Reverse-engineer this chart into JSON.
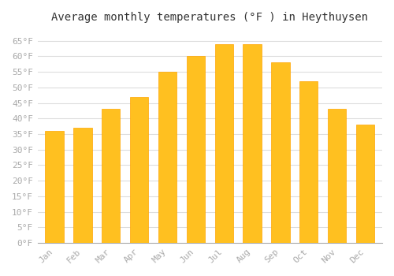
{
  "months": [
    "Jan",
    "Feb",
    "Mar",
    "Apr",
    "May",
    "Jun",
    "Jul",
    "Aug",
    "Sep",
    "Oct",
    "Nov",
    "Dec"
  ],
  "values": [
    36,
    37,
    43,
    47,
    55,
    60,
    64,
    64,
    58,
    52,
    43,
    38
  ],
  "bar_color_main": "#FFC020",
  "bar_color_edge": "#FFA500",
  "title": "Average monthly temperatures (°F ) in Heythuysen",
  "ylim": [
    0,
    68
  ],
  "yticks": [
    0,
    5,
    10,
    15,
    20,
    25,
    30,
    35,
    40,
    45,
    50,
    55,
    60,
    65
  ],
  "ytick_labels": [
    "0°F",
    "5°F",
    "10°F",
    "15°F",
    "20°F",
    "25°F",
    "30°F",
    "35°F",
    "40°F",
    "45°F",
    "50°F",
    "55°F",
    "60°F",
    "65°F"
  ],
  "background_color": "#ffffff",
  "grid_color": "#dddddd",
  "title_fontsize": 10,
  "tick_fontsize": 8,
  "tick_color": "#aaaaaa",
  "font_family": "monospace"
}
